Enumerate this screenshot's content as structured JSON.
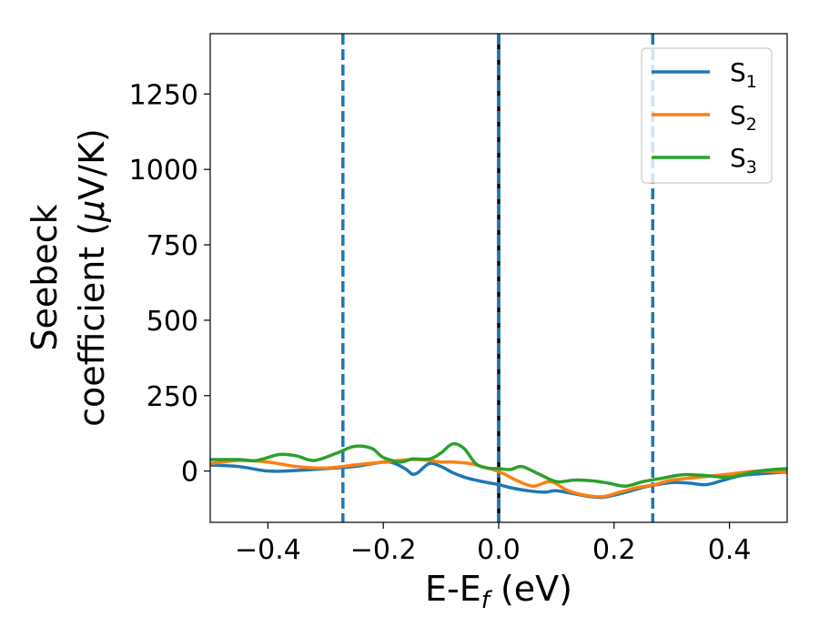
{
  "chart_data": {
    "type": "line",
    "title": "",
    "xlabel": "E-E",
    "xlabel_sub": "f",
    "xlabel_unit": "(eV)",
    "ylabel_line1": "Seebeck",
    "ylabel_line2": "coefficient  (",
    "ylabel_mu": "μ",
    "ylabel_line2_end": "V/K)",
    "xlim": [
      -0.5,
      0.5
    ],
    "ylim": [
      -170,
      1450
    ],
    "xticks": [
      -0.4,
      -0.2,
      0.0,
      0.2,
      0.4
    ],
    "xtick_labels": [
      "−0.4",
      "−0.2",
      "0.0",
      "0.2",
      "0.4"
    ],
    "yticks": [
      0,
      250,
      500,
      750,
      1000,
      1250
    ],
    "ytick_labels": [
      "0",
      "250",
      "500",
      "750",
      "1000",
      "1250"
    ],
    "legend_position": "top-right",
    "vlines": [
      {
        "x": -0.27,
        "style": "dashed",
        "color": "#1f77b4"
      },
      {
        "x": 0.0,
        "style": "solid",
        "color": "#000000"
      },
      {
        "x": 0.0,
        "style": "dashed",
        "color": "#1f77b4"
      },
      {
        "x": 0.267,
        "style": "dashed",
        "color": "#1f77b4"
      }
    ],
    "series": [
      {
        "name": "S",
        "sub": "1",
        "color": "#1f77b4",
        "x": [
          -0.5,
          -0.45,
          -0.4,
          -0.35,
          -0.3,
          -0.25,
          -0.2,
          -0.18,
          -0.16,
          -0.15,
          -0.14,
          -0.12,
          -0.1,
          -0.08,
          -0.06,
          -0.04,
          -0.02,
          0.0,
          0.02,
          0.05,
          0.08,
          0.1,
          0.13,
          0.16,
          0.18,
          0.2,
          0.23,
          0.26,
          0.3,
          0.33,
          0.36,
          0.39,
          0.42,
          0.46,
          0.5
        ],
        "y": [
          20,
          15,
          0,
          2,
          8,
          15,
          30,
          25,
          5,
          -10,
          -5,
          25,
          15,
          -5,
          -20,
          -30,
          -38,
          -45,
          -55,
          -65,
          -70,
          -65,
          -75,
          -85,
          -87,
          -80,
          -65,
          -50,
          -38,
          -40,
          -45,
          -30,
          -15,
          -8,
          -3
        ]
      },
      {
        "name": "S",
        "sub": "2",
        "color": "#ff7f0e",
        "x": [
          -0.5,
          -0.45,
          -0.4,
          -0.35,
          -0.3,
          -0.25,
          -0.2,
          -0.15,
          -0.12,
          -0.1,
          -0.08,
          -0.05,
          -0.03,
          -0.01,
          0.01,
          0.03,
          0.06,
          0.09,
          0.12,
          0.15,
          0.18,
          0.21,
          0.24,
          0.27,
          0.3,
          0.35,
          0.4,
          0.45,
          0.5
        ],
        "y": [
          25,
          35,
          30,
          15,
          10,
          20,
          30,
          38,
          35,
          30,
          30,
          25,
          15,
          5,
          -10,
          -30,
          -50,
          -35,
          -65,
          -80,
          -85,
          -70,
          -55,
          -45,
          -30,
          -20,
          -10,
          0,
          -5
        ]
      },
      {
        "name": "S",
        "sub": "3",
        "color": "#2ca02c",
        "x": [
          -0.5,
          -0.45,
          -0.42,
          -0.38,
          -0.35,
          -0.32,
          -0.28,
          -0.25,
          -0.22,
          -0.2,
          -0.17,
          -0.15,
          -0.12,
          -0.1,
          -0.08,
          -0.06,
          -0.04,
          -0.02,
          0.0,
          0.02,
          0.04,
          0.07,
          0.1,
          0.13,
          0.16,
          0.19,
          0.22,
          0.25,
          0.28,
          0.32,
          0.36,
          0.4,
          0.45,
          0.5
        ],
        "y": [
          38,
          38,
          35,
          55,
          50,
          35,
          60,
          82,
          75,
          45,
          30,
          40,
          40,
          60,
          90,
          75,
          25,
          10,
          8,
          5,
          15,
          -10,
          -35,
          -30,
          -32,
          -40,
          -50,
          -35,
          -25,
          -12,
          -15,
          -20,
          0,
          8
        ]
      }
    ]
  }
}
